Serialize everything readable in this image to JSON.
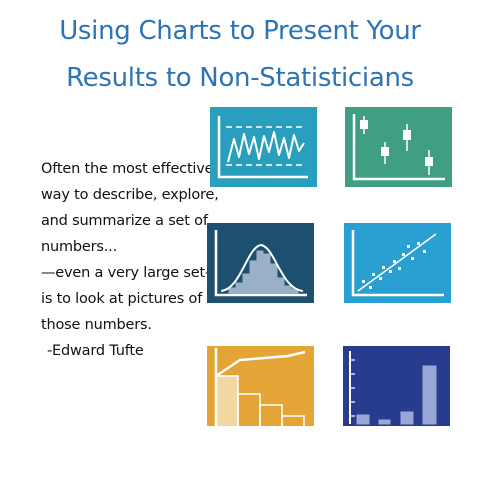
{
  "title": {
    "line1": "Using Charts to Present Your",
    "line2": "Results to Non-Statisticians"
  },
  "quote": {
    "lines": [
      "Often the most effective",
      "way to describe, explore,",
      "and summarize a set of",
      "numbers...",
      "—even a very large set—",
      "is to look at pictures of",
      "those numbers."
    ],
    "attribution": "-Edward Tufte"
  },
  "tiles": {
    "line_chart": {
      "bg": "#2a9fbd",
      "mark": "#ffffff"
    },
    "box_plot": {
      "bg": "#3f9e84",
      "mark": "#ffffff"
    },
    "histogram": {
      "bg": "#1d4f6e",
      "mark": "#9ab0c8"
    },
    "scatter": {
      "bg": "#2a9fd2",
      "mark": "#ffffff"
    },
    "cumulative": {
      "bg": "#e5a536",
      "mark": "#f3d7a3"
    },
    "bar_chart": {
      "bg": "#283c8f",
      "mark": "#9aa6d6"
    }
  }
}
